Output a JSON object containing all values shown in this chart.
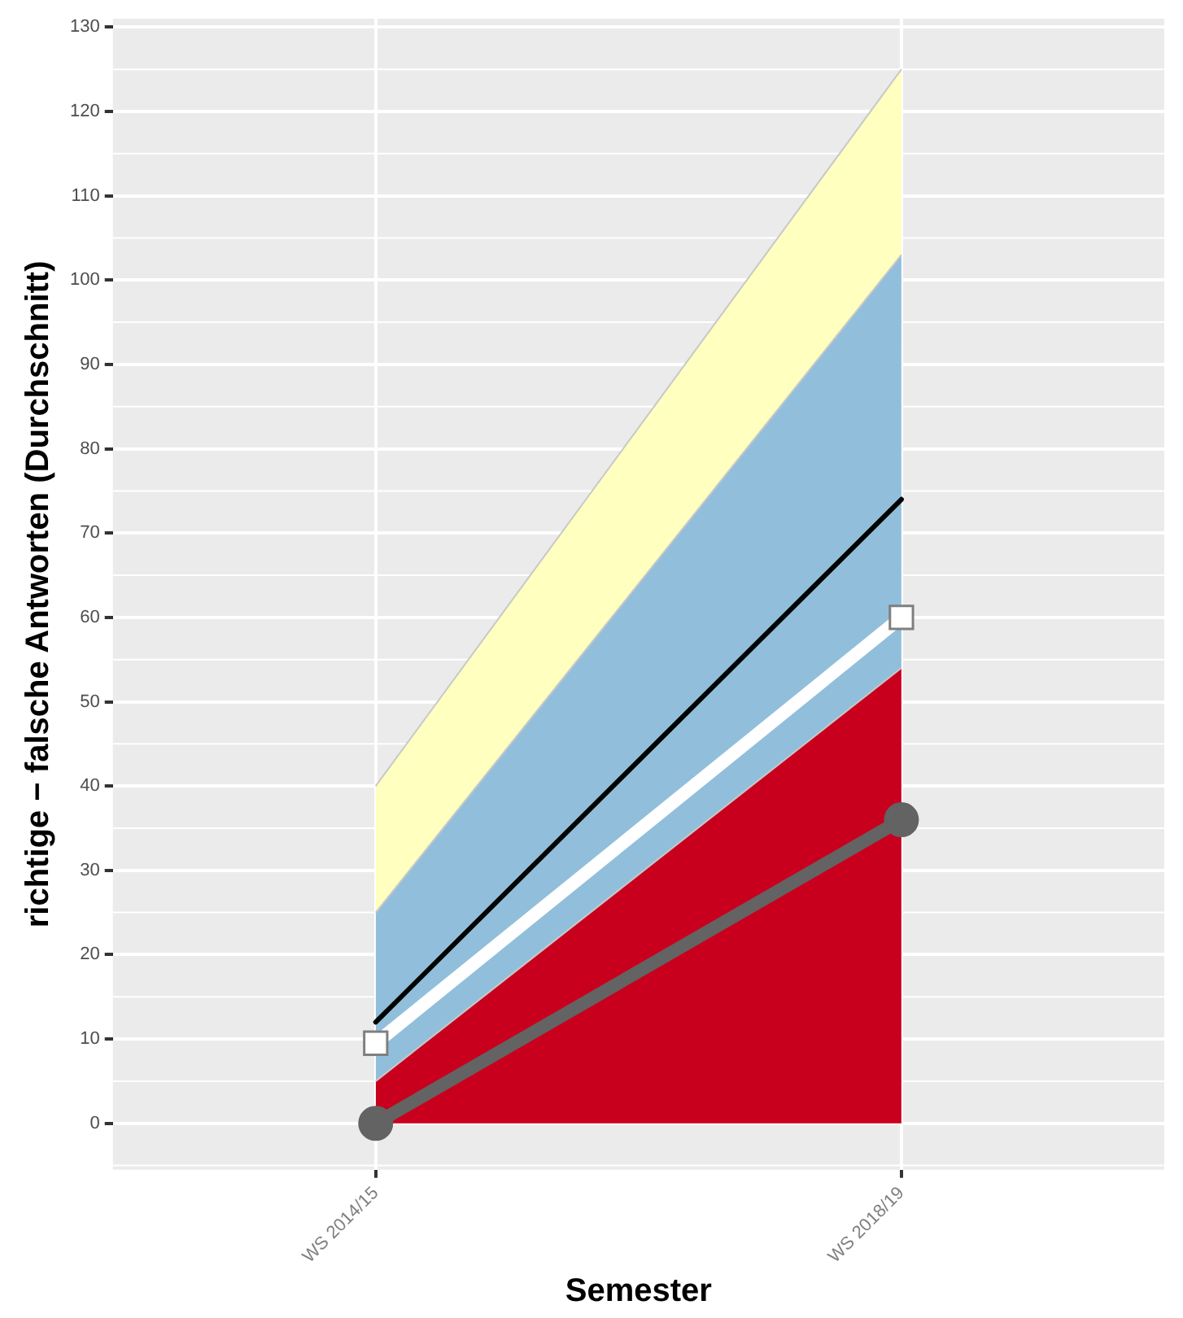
{
  "chart_data": {
    "type": "area",
    "stacked": true,
    "xlabel": "Semester",
    "ylabel": "richtige − falsche Antworten (Durchschnitt)",
    "categories": [
      "WS 2014/15",
      "WS 2018/19"
    ],
    "series": [
      {
        "color": "#c8001e",
        "values": [
          5,
          54
        ]
      },
      {
        "color": "#91bfdb",
        "values": [
          20,
          49
        ]
      },
      {
        "color": "#ffffbf",
        "values": [
          15,
          22
        ]
      },
      {
        "type": "line",
        "color": "#000000",
        "marker": "none",
        "values": [
          12,
          74
        ]
      },
      {
        "type": "line",
        "color": "#ffffff",
        "marker": "square",
        "values": [
          9.5,
          60
        ]
      },
      {
        "type": "line",
        "color": "#636363",
        "marker": "circle",
        "values": [
          0,
          36
        ]
      }
    ],
    "ylim": [
      -5.5,
      131
    ],
    "yticks": [
      0,
      10,
      20,
      30,
      40,
      50,
      60,
      70,
      80,
      90,
      100,
      110,
      120,
      130
    ],
    "grid": true,
    "legend": false
  }
}
